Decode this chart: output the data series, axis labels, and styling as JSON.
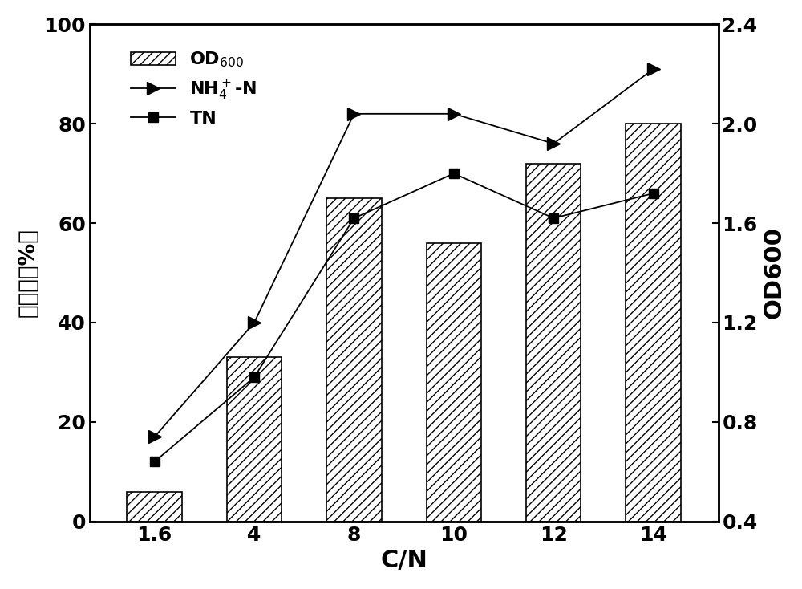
{
  "cn_ratios": [
    1.6,
    4,
    8,
    10,
    12,
    14
  ],
  "bar_values": [
    6,
    33,
    65,
    56,
    72,
    80
  ],
  "nh4_removal": [
    17,
    40,
    82,
    82,
    76,
    91
  ],
  "tn_removal": [
    12,
    29,
    61,
    70,
    61,
    66
  ],
  "od600_right_axis": {
    "ylim": [
      0.4,
      2.4
    ],
    "yticks": [
      0.4,
      0.8,
      1.2,
      1.6,
      2.0,
      2.4
    ]
  },
  "left_axis": {
    "ylim": [
      0,
      100
    ],
    "yticks": [
      0,
      20,
      40,
      60,
      80,
      100
    ]
  },
  "xlabel": "C/N",
  "ylabel_left": "去除率（%）",
  "ylabel_right": "OD600",
  "bar_color": "white",
  "bar_edgecolor": "black",
  "bar_hatch": "///",
  "line_nh4_color": "black",
  "line_tn_color": "black",
  "background_color": "white",
  "label_fontsize": 20,
  "tick_fontsize": 18,
  "legend_fontsize": 16,
  "bar_width": 0.55
}
